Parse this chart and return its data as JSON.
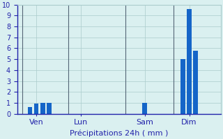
{
  "bar_positions": [
    2,
    3,
    4,
    5,
    20,
    26,
    27,
    28
  ],
  "bar_values": [
    0.6,
    0.9,
    1.0,
    1.0,
    1.0,
    5.0,
    9.6,
    5.8
  ],
  "bar_color": "#1565c8",
  "background_color": "#daf0f0",
  "plot_bg_color": "#daf0f0",
  "grid_color": "#aacccc",
  "axis_color": "#2222aa",
  "tick_color": "#2222aa",
  "label_color": "#2222aa",
  "xlim": [
    0,
    32
  ],
  "ylim": [
    0,
    10
  ],
  "yticks": [
    0,
    1,
    2,
    3,
    4,
    5,
    6,
    7,
    8,
    9,
    10
  ],
  "day_labels": [
    "Ven",
    "Lun",
    "Sam",
    "Dim"
  ],
  "day_positions": [
    3,
    10,
    20,
    27
  ],
  "day_vline_positions": [
    0.8,
    8,
    17,
    24.5
  ],
  "xlabel": "Précipitations 24h ( mm )",
  "bar_width": 0.7,
  "xlabel_fontsize": 8,
  "ytick_fontsize": 7,
  "xtick_fontsize": 8
}
